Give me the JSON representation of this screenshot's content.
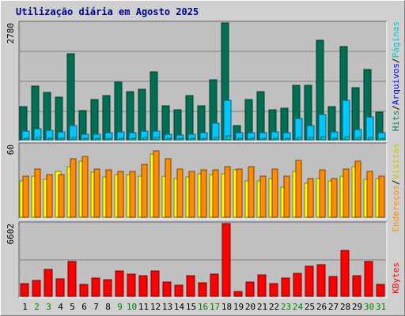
{
  "title": "Utilização diária em Agosto 2025",
  "colors": {
    "hits": "#006d55",
    "files": "#00c8ff",
    "pages": "#00c8c8",
    "visits": "#ffff00",
    "sites": "#ff8c00",
    "kbytes": "#ff0000",
    "weekend_day": "#008000",
    "weekday_day": "#000000",
    "panel_bg": "#c0c0c0",
    "grid": "#808080"
  },
  "legend": {
    "top_right": [
      {
        "text": "Hits",
        "color": "#008040"
      },
      {
        "text": "/",
        "color": "#000000"
      },
      {
        "text": "Arquivos",
        "color": "#0000ff"
      },
      {
        "text": "/",
        "color": "#000000"
      },
      {
        "text": "Páginas",
        "color": "#00c8c8"
      }
    ],
    "middle_right": [
      {
        "text": "Endereços",
        "color": "#ff8c00"
      },
      {
        "text": "/",
        "color": "#000000"
      },
      {
        "text": "Visitas",
        "color": "#c8c800"
      }
    ],
    "bottom_right": [
      {
        "text": "KBytes",
        "color": "#ff0000"
      }
    ]
  },
  "chart_data": [
    {
      "type": "bar",
      "panel": "hits_files_pages",
      "scale_label": "2780",
      "ylim": [
        0,
        2780
      ],
      "categories": [
        "1",
        "2",
        "3",
        "4",
        "5",
        "6",
        "7",
        "8",
        "9",
        "10",
        "11",
        "12",
        "13",
        "14",
        "15",
        "16",
        "17",
        "18",
        "19",
        "20",
        "21",
        "22",
        "23",
        "24",
        "25",
        "26",
        "27",
        "28",
        "29",
        "30",
        "31"
      ],
      "series": [
        {
          "name": "Hits",
          "values": [
            780,
            1280,
            1120,
            1010,
            2040,
            700,
            950,
            1050,
            1380,
            1150,
            1200,
            1620,
            810,
            720,
            1060,
            800,
            1420,
            2780,
            330,
            950,
            1140,
            720,
            760,
            1300,
            1300,
            2360,
            780,
            2220,
            1240,
            1670,
            650
          ]
        },
        {
          "name": "Arquivos",
          "values": [
            210,
            270,
            220,
            180,
            330,
            140,
            140,
            160,
            190,
            170,
            200,
            210,
            130,
            120,
            140,
            170,
            390,
            940,
            160,
            160,
            160,
            190,
            160,
            510,
            330,
            600,
            190,
            940,
            240,
            540,
            170
          ]
        },
        {
          "name": "Páginas",
          "values": [
            40,
            50,
            40,
            40,
            60,
            30,
            30,
            40,
            40,
            40,
            50,
            50,
            30,
            30,
            30,
            40,
            60,
            90,
            40,
            30,
            40,
            30,
            40,
            60,
            50,
            70,
            40,
            80,
            50,
            60,
            40
          ]
        }
      ]
    },
    {
      "type": "bar",
      "panel": "visits_sites",
      "scale_label": "60",
      "ylim": [
        0,
        60
      ],
      "categories": [
        "1",
        "2",
        "3",
        "4",
        "5",
        "6",
        "7",
        "8",
        "9",
        "10",
        "11",
        "12",
        "13",
        "14",
        "15",
        "16",
        "17",
        "18",
        "19",
        "20",
        "21",
        "22",
        "23",
        "24",
        "25",
        "26",
        "27",
        "28",
        "29",
        "30",
        "31"
      ],
      "series": [
        {
          "name": "Visitas",
          "values": [
            30,
            34,
            31,
            38,
            42,
            46,
            37,
            33,
            35,
            35,
            34,
            52,
            34,
            32,
            33,
            36,
            35,
            36,
            39,
            30,
            30,
            32,
            25,
            38,
            28,
            32,
            30,
            34,
            42,
            31,
            32
          ]
        },
        {
          "name": "Endereços",
          "values": [
            34,
            40,
            35,
            35,
            48,
            50,
            40,
            39,
            38,
            38,
            44,
            55,
            48,
            40,
            38,
            39,
            39,
            42,
            40,
            42,
            34,
            40,
            34,
            47,
            32,
            39,
            32,
            40,
            46,
            38,
            34
          ]
        }
      ]
    },
    {
      "type": "bar",
      "panel": "kbytes",
      "scale_label": "6602",
      "ylim": [
        0,
        6602
      ],
      "categories": [
        "1",
        "2",
        "3",
        "4",
        "5",
        "6",
        "7",
        "8",
        "9",
        "10",
        "11",
        "12",
        "13",
        "14",
        "15",
        "16",
        "17",
        "18",
        "19",
        "20",
        "21",
        "22",
        "23",
        "24",
        "25",
        "26",
        "27",
        "28",
        "29",
        "30",
        "31"
      ],
      "series": [
        {
          "name": "KBytes",
          "values": [
            1120,
            1460,
            2420,
            1560,
            3150,
            1100,
            1680,
            1490,
            2330,
            2000,
            1840,
            2320,
            1260,
            1010,
            1850,
            1210,
            2040,
            6602,
            400,
            1290,
            1940,
            1150,
            1640,
            2100,
            2710,
            2900,
            1760,
            4170,
            1890,
            3160,
            1060
          ]
        }
      ]
    }
  ]
}
